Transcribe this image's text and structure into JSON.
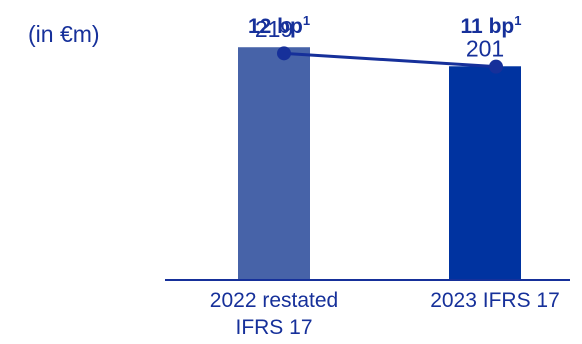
{
  "unit_label": "(in €m)",
  "colors": {
    "text": "#16309a",
    "axis": "#16309a",
    "line": "#16309a"
  },
  "chart_data": [
    {
      "type": "bar",
      "categories": [
        "2022 restated IFRS 17",
        "2023 IFRS 17"
      ],
      "category_lines": [
        [
          "2022 restated",
          "IFRS 17"
        ],
        [
          "2023 IFRS 17"
        ]
      ],
      "values": [
        219,
        201
      ],
      "value_labels": [
        "219",
        "201"
      ],
      "bar_colors": [
        "#4763a8",
        "#0033a0"
      ],
      "ylim": [
        0,
        240
      ]
    },
    {
      "type": "line",
      "categories": [
        "2022 restated IFRS 17",
        "2023 IFRS 17"
      ],
      "values": [
        12,
        11
      ],
      "labels": [
        "12 bp",
        "11 bp"
      ],
      "label_superscript": "1",
      "unit": "bp",
      "ylim": [
        10,
        13
      ]
    }
  ]
}
